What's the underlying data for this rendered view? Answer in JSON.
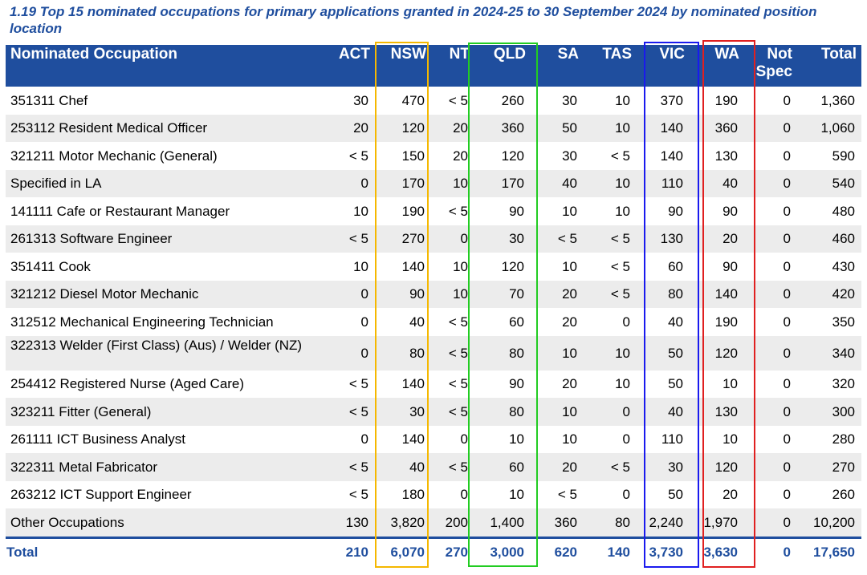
{
  "caption": "1.19  Top 15 nominated occupations for primary applications granted in 2024-25 to 30 September 2024 by nominated position location",
  "columns": {
    "occupation": "Nominated Occupation",
    "act": "ACT",
    "nsw": "NSW",
    "nt": "NT",
    "qld": "QLD",
    "sa": "SA",
    "tas": "TAS",
    "vic": "VIC",
    "wa": "WA",
    "not_spec": "Not Spec",
    "total": "Total"
  },
  "rows": [
    {
      "occupation": "351311 Chef",
      "act": "30",
      "nsw": "470",
      "nt": "< 5",
      "qld": "260",
      "sa": "30",
      "tas": "10",
      "vic": "370",
      "wa": "190",
      "not_spec": "0",
      "total": "1,360"
    },
    {
      "occupation": "253112 Resident Medical Officer",
      "act": "20",
      "nsw": "120",
      "nt": "20",
      "qld": "360",
      "sa": "50",
      "tas": "10",
      "vic": "140",
      "wa": "360",
      "not_spec": "0",
      "total": "1,060"
    },
    {
      "occupation": "321211 Motor Mechanic (General)",
      "act": "< 5",
      "nsw": "150",
      "nt": "20",
      "qld": "120",
      "sa": "30",
      "tas": "< 5",
      "vic": "140",
      "wa": "130",
      "not_spec": "0",
      "total": "590"
    },
    {
      "occupation": "Specified in LA",
      "act": "0",
      "nsw": "170",
      "nt": "10",
      "qld": "170",
      "sa": "40",
      "tas": "10",
      "vic": "110",
      "wa": "40",
      "not_spec": "0",
      "total": "540"
    },
    {
      "occupation": "141111 Cafe or Restaurant Manager",
      "act": "10",
      "nsw": "190",
      "nt": "< 5",
      "qld": "90",
      "sa": "10",
      "tas": "10",
      "vic": "90",
      "wa": "90",
      "not_spec": "0",
      "total": "480"
    },
    {
      "occupation": "261313 Software Engineer",
      "act": "< 5",
      "nsw": "270",
      "nt": "0",
      "qld": "30",
      "sa": "< 5",
      "tas": "< 5",
      "vic": "130",
      "wa": "20",
      "not_spec": "0",
      "total": "460"
    },
    {
      "occupation": "351411 Cook",
      "act": "10",
      "nsw": "140",
      "nt": "10",
      "qld": "120",
      "sa": "10",
      "tas": "< 5",
      "vic": "60",
      "wa": "90",
      "not_spec": "0",
      "total": "430"
    },
    {
      "occupation": "321212 Diesel Motor Mechanic",
      "act": "0",
      "nsw": "90",
      "nt": "10",
      "qld": "70",
      "sa": "20",
      "tas": "< 5",
      "vic": "80",
      "wa": "140",
      "not_spec": "0",
      "total": "420"
    },
    {
      "occupation": "312512 Mechanical Engineering Technician",
      "act": "0",
      "nsw": "40",
      "nt": "< 5",
      "qld": "60",
      "sa": "20",
      "tas": "0",
      "vic": "40",
      "wa": "190",
      "not_spec": "0",
      "total": "350"
    },
    {
      "occupation": "322313 Welder (First Class) (Aus) / Welder (NZ)",
      "act": "0",
      "nsw": "80",
      "nt": "< 5",
      "qld": "80",
      "sa": "10",
      "tas": "10",
      "vic": "50",
      "wa": "120",
      "not_spec": "0",
      "total": "340"
    },
    {
      "occupation": "254412 Registered Nurse (Aged Care)",
      "act": "< 5",
      "nsw": "140",
      "nt": "< 5",
      "qld": "90",
      "sa": "20",
      "tas": "10",
      "vic": "50",
      "wa": "10",
      "not_spec": "0",
      "total": "320"
    },
    {
      "occupation": "323211 Fitter (General)",
      "act": "< 5",
      "nsw": "30",
      "nt": "< 5",
      "qld": "80",
      "sa": "10",
      "tas": "0",
      "vic": "40",
      "wa": "130",
      "not_spec": "0",
      "total": "300"
    },
    {
      "occupation": "261111 ICT Business Analyst",
      "act": "0",
      "nsw": "140",
      "nt": "0",
      "qld": "10",
      "sa": "10",
      "tas": "0",
      "vic": "110",
      "wa": "10",
      "not_spec": "0",
      "total": "280"
    },
    {
      "occupation": "322311 Metal Fabricator",
      "act": "< 5",
      "nsw": "40",
      "nt": "< 5",
      "qld": "60",
      "sa": "20",
      "tas": "< 5",
      "vic": "30",
      "wa": "120",
      "not_spec": "0",
      "total": "270"
    },
    {
      "occupation": "263212 ICT Support Engineer",
      "act": "< 5",
      "nsw": "180",
      "nt": "0",
      "qld": "10",
      "sa": "< 5",
      "tas": "0",
      "vic": "50",
      "wa": "20",
      "not_spec": "0",
      "total": "260"
    },
    {
      "occupation": "Other Occupations",
      "act": "130",
      "nsw": "3,820",
      "nt": "200",
      "qld": "1,400",
      "sa": "360",
      "tas": "80",
      "vic": "2,240",
      "wa": "1,970",
      "not_spec": "0",
      "total": "10,200"
    }
  ],
  "total_row": {
    "occupation": "Total",
    "act": "210",
    "nsw": "6,070",
    "nt": "270",
    "qld": "3,000",
    "sa": "620",
    "tas": "140",
    "vic": "3,730",
    "wa": "3,630",
    "not_spec": "0",
    "total": "17,650"
  },
  "highlight_colors": {
    "nsw": "#f5b800",
    "qld": "#22cc22",
    "vic": "#1a1aee",
    "wa": "#e02020"
  },
  "header_color": "#1f4e9e",
  "stripe_color": "#ececec"
}
